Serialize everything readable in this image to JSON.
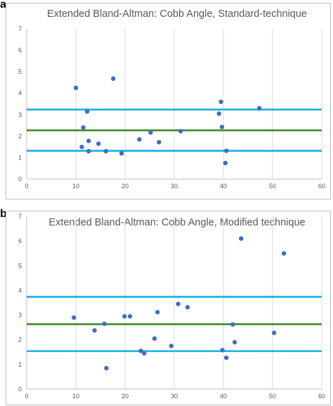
{
  "panels": [
    {
      "letter": "a",
      "chart_data": {
        "type": "scatter",
        "title": "Extended Bland-Altman: Cobb Angle, Standard-technique",
        "xlabel": "",
        "ylabel": "",
        "xlim": [
          0,
          60
        ],
        "ylim": [
          0,
          7
        ],
        "xticks": [
          0,
          10,
          20,
          30,
          40,
          50,
          60
        ],
        "yticks": [
          0,
          1,
          2,
          3,
          4,
          5,
          6,
          7
        ],
        "grid": "vertical",
        "legend": "none",
        "points": [
          {
            "x": 10.0,
            "y": 4.25
          },
          {
            "x": 17.6,
            "y": 4.68
          },
          {
            "x": 12.3,
            "y": 3.15
          },
          {
            "x": 11.5,
            "y": 2.4
          },
          {
            "x": 11.2,
            "y": 1.5
          },
          {
            "x": 12.6,
            "y": 1.78
          },
          {
            "x": 12.6,
            "y": 1.3
          },
          {
            "x": 14.6,
            "y": 1.65
          },
          {
            "x": 16.1,
            "y": 1.3
          },
          {
            "x": 19.3,
            "y": 1.2
          },
          {
            "x": 22.9,
            "y": 1.85
          },
          {
            "x": 25.2,
            "y": 2.17
          },
          {
            "x": 26.9,
            "y": 1.72
          },
          {
            "x": 31.3,
            "y": 2.23
          },
          {
            "x": 39.1,
            "y": 3.05
          },
          {
            "x": 39.5,
            "y": 3.6
          },
          {
            "x": 39.7,
            "y": 2.43
          },
          {
            "x": 40.6,
            "y": 1.32
          },
          {
            "x": 40.4,
            "y": 0.75
          },
          {
            "x": 47.3,
            "y": 3.3
          }
        ],
        "reference_lines": [
          {
            "y": 3.24,
            "color": "#17aee6"
          },
          {
            "y": 2.27,
            "color": "#3f8a2e"
          },
          {
            "y": 1.32,
            "color": "#17aee6"
          }
        ],
        "point_color": "#3f6fc2"
      }
    },
    {
      "letter": "b",
      "chart_data": {
        "type": "scatter",
        "title": "Extended Bland-Altman: Cobb Angle, Modified technique",
        "xlabel": "",
        "ylabel": "",
        "xlim": [
          0,
          60
        ],
        "ylim": [
          0,
          7
        ],
        "xticks": [
          0,
          10,
          20,
          30,
          40,
          50,
          60
        ],
        "yticks": [
          0,
          1,
          2,
          3,
          4,
          5,
          6,
          7
        ],
        "grid": "vertical",
        "legend": "none",
        "points": [
          {
            "x": 9.6,
            "y": 2.9
          },
          {
            "x": 13.8,
            "y": 2.38
          },
          {
            "x": 15.8,
            "y": 2.65
          },
          {
            "x": 16.2,
            "y": 0.85
          },
          {
            "x": 19.9,
            "y": 2.95
          },
          {
            "x": 21.0,
            "y": 2.95
          },
          {
            "x": 23.2,
            "y": 1.55
          },
          {
            "x": 23.9,
            "y": 1.45
          },
          {
            "x": 26.0,
            "y": 2.05
          },
          {
            "x": 26.6,
            "y": 3.12
          },
          {
            "x": 29.4,
            "y": 1.75
          },
          {
            "x": 30.8,
            "y": 3.45
          },
          {
            "x": 32.7,
            "y": 3.32
          },
          {
            "x": 39.8,
            "y": 1.58
          },
          {
            "x": 40.6,
            "y": 1.27
          },
          {
            "x": 41.9,
            "y": 2.62
          },
          {
            "x": 42.3,
            "y": 1.9
          },
          {
            "x": 43.6,
            "y": 6.1
          },
          {
            "x": 50.3,
            "y": 2.28
          },
          {
            "x": 52.3,
            "y": 5.5
          }
        ],
        "reference_lines": [
          {
            "y": 3.74,
            "color": "#17aee6"
          },
          {
            "y": 2.63,
            "color": "#3f8a2e"
          },
          {
            "y": 1.54,
            "color": "#17aee6"
          }
        ],
        "point_color": "#3f6fc2"
      }
    }
  ]
}
